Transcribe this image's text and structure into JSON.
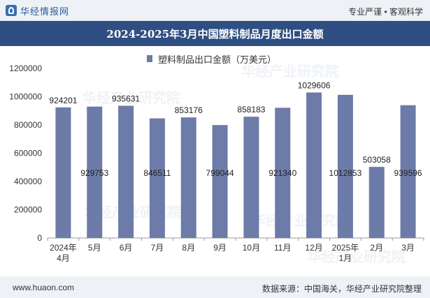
{
  "header": {
    "logo_text": "华经情报网",
    "tagline": "专业严谨 • 客观科学",
    "brand_color": "#2f4f82"
  },
  "watermark": "华经产业研究院",
  "footer": {
    "website": "www.huaon.com",
    "source": "数据来源：中国海关，华经产业研究院整理"
  },
  "chart_data": {
    "type": "bar",
    "title": "2024-2025年3月中国塑料制品月度出口金额",
    "categories": [
      "2024年\n4月",
      "5月",
      "6月",
      "7月",
      "8月",
      "9月",
      "10月",
      "11月",
      "12月",
      "2025年\n1月",
      "2月",
      "3月"
    ],
    "series": [
      {
        "name": "塑料制品出口金额（万美元）",
        "color": "#6d7ba8",
        "values": [
          924201,
          929753,
          935631,
          846511,
          853176,
          799044,
          858183,
          921340,
          1029606,
          1012853,
          503058,
          939596
        ]
      }
    ],
    "label_positions": [
      "top",
      "inside",
      "top",
      "inside",
      "top",
      "inside",
      "top",
      "inside",
      "top",
      "inside",
      "top",
      "inside"
    ],
    "ylim": [
      0,
      1200000
    ],
    "yticks": [
      0,
      200000,
      400000,
      600000,
      800000,
      1000000,
      1200000
    ],
    "grid": false,
    "legend_position": "top-center"
  }
}
